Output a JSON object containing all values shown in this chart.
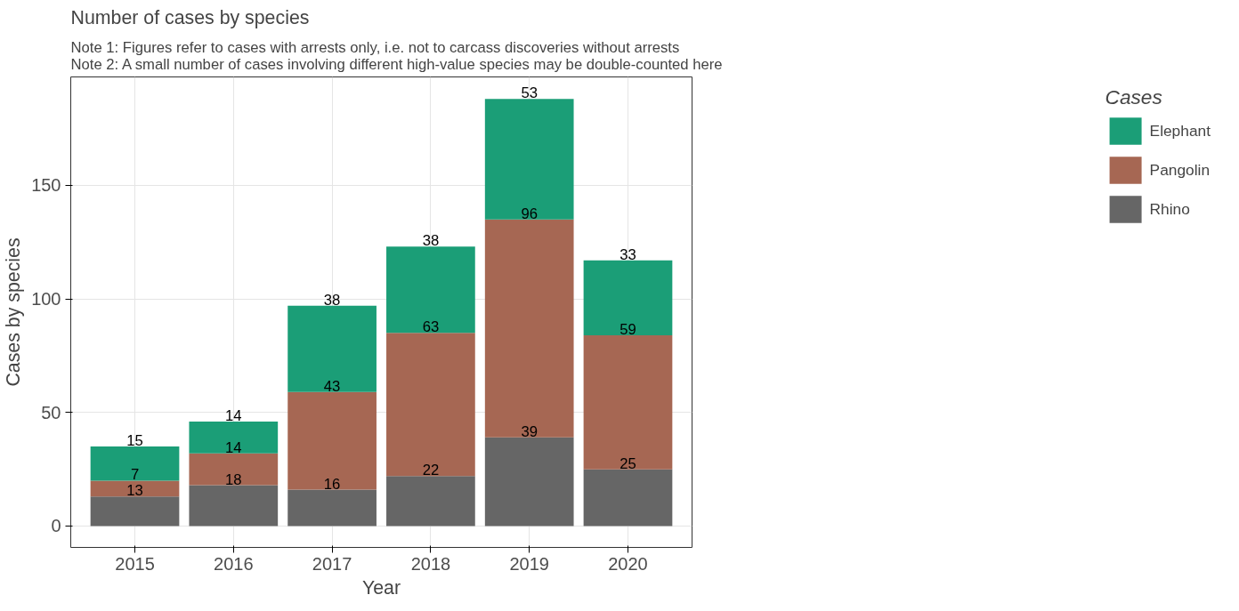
{
  "chart_data": {
    "type": "bar",
    "title": "Number of cases by species",
    "subtitle": "Note 1: Figures refer to cases with arrests only, i.e. not to carcass discoveries without arrests\nNote 2: A small number of cases involving different high-value species may be double-counted here",
    "xlabel": "Year",
    "ylabel": "Cases by species",
    "legend_title": "Cases",
    "categories": [
      "2015",
      "2016",
      "2017",
      "2018",
      "2019",
      "2020"
    ],
    "stacked": true,
    "data_labels": true,
    "legend": "right",
    "grid": true,
    "ylim": [
      -9.4,
      197.7
    ],
    "yticks": [
      0,
      50,
      100,
      150
    ],
    "series": [
      {
        "name": "Rhino",
        "color": "#666666",
        "values": [
          13,
          18,
          16,
          22,
          39,
          25
        ]
      },
      {
        "name": "Pangolin",
        "color": "#a66753",
        "values": [
          7,
          14,
          43,
          63,
          96,
          59
        ]
      },
      {
        "name": "Elephant",
        "color": "#1b9e77",
        "values": [
          15,
          14,
          38,
          38,
          53,
          33
        ]
      }
    ]
  }
}
